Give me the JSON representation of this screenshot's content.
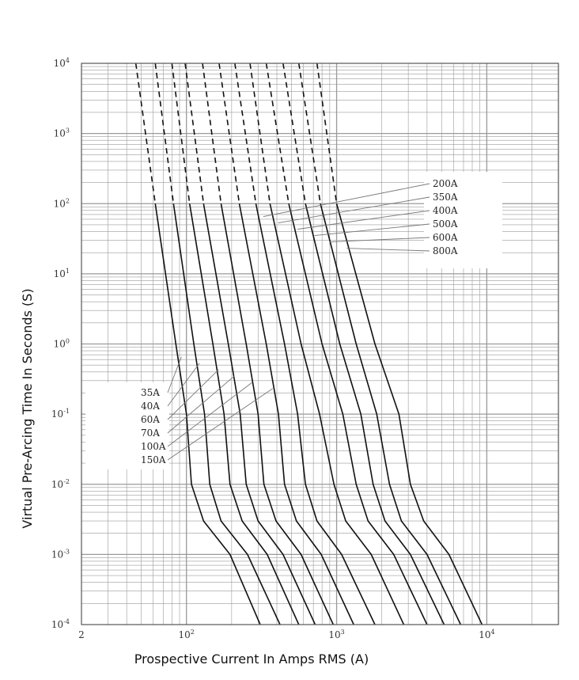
{
  "chart_data": {
    "type": "line",
    "title": "",
    "xlabel": "Prospective Current In Amps RMS (A)",
    "ylabel": "Virtual Pre-Arcing Time In Seconds (S)",
    "x_scale": "log",
    "y_scale": "log",
    "xlim": [
      20,
      30000
    ],
    "ylim": [
      0.0001,
      10000
    ],
    "x_tick_labels": [
      {
        "value": 20,
        "base": "2",
        "exp": ""
      },
      {
        "value": 100,
        "base": "10",
        "exp": "2"
      },
      {
        "value": 1000,
        "base": "10",
        "exp": "3"
      },
      {
        "value": 10000,
        "base": "10",
        "exp": "4"
      }
    ],
    "y_tick_labels": [
      {
        "value": 10000,
        "base": "10",
        "exp": "4"
      },
      {
        "value": 1000,
        "base": "10",
        "exp": "3"
      },
      {
        "value": 100,
        "base": "10",
        "exp": "2"
      },
      {
        "value": 10,
        "base": "10",
        "exp": "1"
      },
      {
        "value": 1,
        "base": "10",
        "exp": "0"
      },
      {
        "value": 0.1,
        "base": "10",
        "exp": "-1"
      },
      {
        "value": 0.01,
        "base": "10",
        "exp": "-2"
      },
      {
        "value": 0.001,
        "base": "10",
        "exp": "-3"
      },
      {
        "value": 0.0001,
        "base": "10",
        "exp": "-4"
      }
    ],
    "grid": true,
    "dashed_above_seconds": 100,
    "legend_low": [
      "35A",
      "40A",
      "60A",
      "70A",
      "100A",
      "150A"
    ],
    "legend_high": [
      "200A",
      "350A",
      "400A",
      "500A",
      "600A",
      "800A"
    ],
    "series": [
      {
        "name": "35A",
        "points": [
          [
            46,
            10000
          ],
          [
            62,
            100
          ],
          [
            85,
            1
          ],
          [
            100,
            0.1
          ],
          [
            108,
            0.01
          ],
          [
            130,
            0.003
          ],
          [
            195,
            0.001
          ],
          [
            310,
            0.0001
          ]
        ]
      },
      {
        "name": "40A",
        "points": [
          [
            62,
            10000
          ],
          [
            82,
            100
          ],
          [
            112,
            1
          ],
          [
            132,
            0.1
          ],
          [
            143,
            0.01
          ],
          [
            170,
            0.003
          ],
          [
            255,
            0.001
          ],
          [
            420,
            0.0001
          ]
        ]
      },
      {
        "name": "60A",
        "points": [
          [
            80,
            10000
          ],
          [
            105,
            100
          ],
          [
            150,
            1
          ],
          [
            178,
            0.1
          ],
          [
            195,
            0.01
          ],
          [
            235,
            0.003
          ],
          [
            345,
            0.001
          ],
          [
            560,
            0.0001
          ]
        ]
      },
      {
        "name": "70A",
        "points": [
          [
            98,
            10000
          ],
          [
            130,
            100
          ],
          [
            190,
            1
          ],
          [
            228,
            0.1
          ],
          [
            250,
            0.01
          ],
          [
            300,
            0.003
          ],
          [
            440,
            0.001
          ],
          [
            720,
            0.0001
          ]
        ]
      },
      {
        "name": "100A",
        "points": [
          [
            128,
            10000
          ],
          [
            170,
            100
          ],
          [
            250,
            1
          ],
          [
            300,
            0.1
          ],
          [
            328,
            0.01
          ],
          [
            395,
            0.003
          ],
          [
            580,
            0.001
          ],
          [
            950,
            0.0001
          ]
        ]
      },
      {
        "name": "150A",
        "points": [
          [
            165,
            10000
          ],
          [
            225,
            100
          ],
          [
            340,
            1
          ],
          [
            410,
            0.1
          ],
          [
            450,
            0.01
          ],
          [
            540,
            0.003
          ],
          [
            790,
            0.001
          ],
          [
            1300,
            0.0001
          ]
        ]
      },
      {
        "name": "200A",
        "points": [
          [
            210,
            10000
          ],
          [
            290,
            100
          ],
          [
            450,
            1
          ],
          [
            550,
            0.1
          ],
          [
            620,
            0.01
          ],
          [
            740,
            0.003
          ],
          [
            1080,
            0.001
          ],
          [
            1800,
            0.0001
          ]
        ]
      },
      {
        "name": "350A",
        "points": [
          [
            265,
            10000
          ],
          [
            360,
            100
          ],
          [
            580,
            1
          ],
          [
            770,
            0.1
          ],
          [
            960,
            0.01
          ],
          [
            1150,
            0.003
          ],
          [
            1700,
            0.001
          ],
          [
            2800,
            0.0001
          ]
        ]
      },
      {
        "name": "400A",
        "points": [
          [
            340,
            10000
          ],
          [
            480,
            100
          ],
          [
            800,
            1
          ],
          [
            1100,
            0.1
          ],
          [
            1350,
            0.01
          ],
          [
            1620,
            0.003
          ],
          [
            2400,
            0.001
          ],
          [
            4000,
            0.0001
          ]
        ]
      },
      {
        "name": "500A",
        "points": [
          [
            440,
            10000
          ],
          [
            620,
            100
          ],
          [
            1050,
            1
          ],
          [
            1450,
            0.1
          ],
          [
            1750,
            0.01
          ],
          [
            2100,
            0.003
          ],
          [
            3100,
            0.001
          ],
          [
            5200,
            0.0001
          ]
        ]
      },
      {
        "name": "600A",
        "points": [
          [
            560,
            10000
          ],
          [
            780,
            100
          ],
          [
            1350,
            1
          ],
          [
            1850,
            0.1
          ],
          [
            2250,
            0.01
          ],
          [
            2700,
            0.003
          ],
          [
            4000,
            0.001
          ],
          [
            6700,
            0.0001
          ]
        ]
      },
      {
        "name": "800A",
        "points": [
          [
            740,
            10000
          ],
          [
            1000,
            100
          ],
          [
            1800,
            1
          ],
          [
            2600,
            0.1
          ],
          [
            3100,
            0.01
          ],
          [
            3800,
            0.003
          ],
          [
            5600,
            0.001
          ],
          [
            9300,
            0.0001
          ]
        ]
      }
    ],
    "colors": {
      "grid": "#9a9a9a",
      "frame": "#555555",
      "curve": "#111111",
      "leader": "#777777"
    }
  }
}
